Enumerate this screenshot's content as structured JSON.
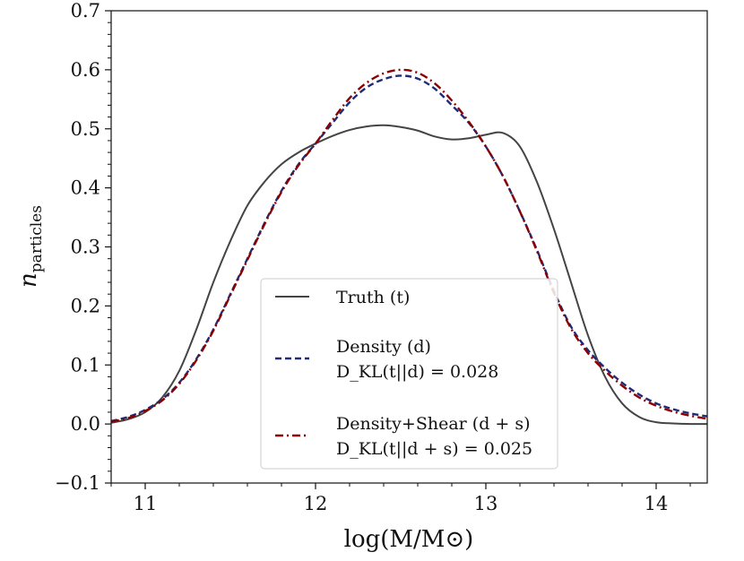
{
  "chart_data": {
    "type": "line",
    "xlabel": "log(M/M⊙)",
    "ylabel": "n_particles",
    "ylabel_main": "n",
    "ylabel_sub": "particles",
    "xlim": [
      10.8,
      14.3
    ],
    "ylim": [
      -0.1,
      0.7
    ],
    "xticks": [
      11,
      12,
      13,
      14
    ],
    "xtick_labels": [
      "11",
      "12",
      "13",
      "14"
    ],
    "yticks": [
      -0.1,
      0.0,
      0.1,
      0.2,
      0.3,
      0.4,
      0.5,
      0.6,
      0.7
    ],
    "ytick_labels": [
      "−0.1",
      "0.0",
      "0.1",
      "0.2",
      "0.3",
      "0.4",
      "0.5",
      "0.6",
      "0.7"
    ],
    "grid": false,
    "legend_position": "lower-center",
    "series": [
      {
        "name": "Truth (t)",
        "color": "#444444",
        "style": "solid",
        "x": [
          10.8,
          10.9,
          11.0,
          11.1,
          11.2,
          11.3,
          11.4,
          11.5,
          11.6,
          11.7,
          11.8,
          11.9,
          12.0,
          12.1,
          12.2,
          12.3,
          12.4,
          12.5,
          12.6,
          12.7,
          12.8,
          12.9,
          13.0,
          13.1,
          13.2,
          13.3,
          13.4,
          13.5,
          13.6,
          13.7,
          13.8,
          13.9,
          14.0,
          14.1,
          14.2,
          14.3
        ],
        "y": [
          0.002,
          0.008,
          0.02,
          0.045,
          0.09,
          0.16,
          0.24,
          0.31,
          0.37,
          0.41,
          0.44,
          0.46,
          0.475,
          0.488,
          0.498,
          0.504,
          0.506,
          0.503,
          0.497,
          0.487,
          0.482,
          0.484,
          0.49,
          0.493,
          0.47,
          0.41,
          0.33,
          0.24,
          0.15,
          0.08,
          0.035,
          0.012,
          0.003,
          0.001,
          0.0,
          0.0
        ]
      },
      {
        "name": "Density (d)",
        "annotation": "D_KL(t||d) = 0.028",
        "color": "#1f2b77",
        "style": "dashed",
        "x": [
          10.8,
          10.9,
          11.0,
          11.1,
          11.2,
          11.3,
          11.4,
          11.5,
          11.6,
          11.7,
          11.8,
          11.9,
          12.0,
          12.1,
          12.2,
          12.3,
          12.4,
          12.5,
          12.6,
          12.7,
          12.8,
          12.9,
          13.0,
          13.1,
          13.2,
          13.3,
          13.4,
          13.5,
          13.6,
          13.7,
          13.8,
          13.9,
          14.0,
          14.1,
          14.2,
          14.3
        ],
        "y": [
          0.005,
          0.012,
          0.024,
          0.042,
          0.07,
          0.11,
          0.16,
          0.22,
          0.28,
          0.34,
          0.395,
          0.44,
          0.475,
          0.51,
          0.545,
          0.57,
          0.584,
          0.59,
          0.585,
          0.568,
          0.54,
          0.51,
          0.47,
          0.42,
          0.36,
          0.295,
          0.225,
          0.165,
          0.125,
          0.095,
          0.07,
          0.05,
          0.035,
          0.025,
          0.018,
          0.013
        ]
      },
      {
        "name": "Density+Shear (d+s)",
        "annotation": "D_KL(t||d+s) = 0.025",
        "color": "#8b0000",
        "style": "dashdot",
        "x": [
          10.8,
          10.9,
          11.0,
          11.1,
          11.2,
          11.3,
          11.4,
          11.5,
          11.6,
          11.7,
          11.8,
          11.9,
          12.0,
          12.1,
          12.2,
          12.3,
          12.4,
          12.5,
          12.6,
          12.7,
          12.8,
          12.9,
          13.0,
          13.1,
          13.2,
          13.3,
          13.4,
          13.5,
          13.6,
          13.7,
          13.8,
          13.9,
          14.0,
          14.1,
          14.2,
          14.3
        ],
        "y": [
          0.004,
          0.01,
          0.022,
          0.04,
          0.068,
          0.108,
          0.158,
          0.218,
          0.278,
          0.338,
          0.393,
          0.438,
          0.475,
          0.515,
          0.552,
          0.578,
          0.594,
          0.6,
          0.595,
          0.577,
          0.548,
          0.512,
          0.47,
          0.42,
          0.36,
          0.293,
          0.222,
          0.162,
          0.12,
          0.09,
          0.065,
          0.045,
          0.031,
          0.021,
          0.014,
          0.009
        ]
      }
    ]
  },
  "legend": {
    "items": [
      {
        "label": "Truth (t)",
        "sub": ""
      },
      {
        "label": "Density (d)",
        "sub": "D_KL(t||d) = 0.028"
      },
      {
        "label": "Density+Shear (d + s)",
        "sub": "D_KL(t||d + s) = 0.025"
      }
    ]
  }
}
